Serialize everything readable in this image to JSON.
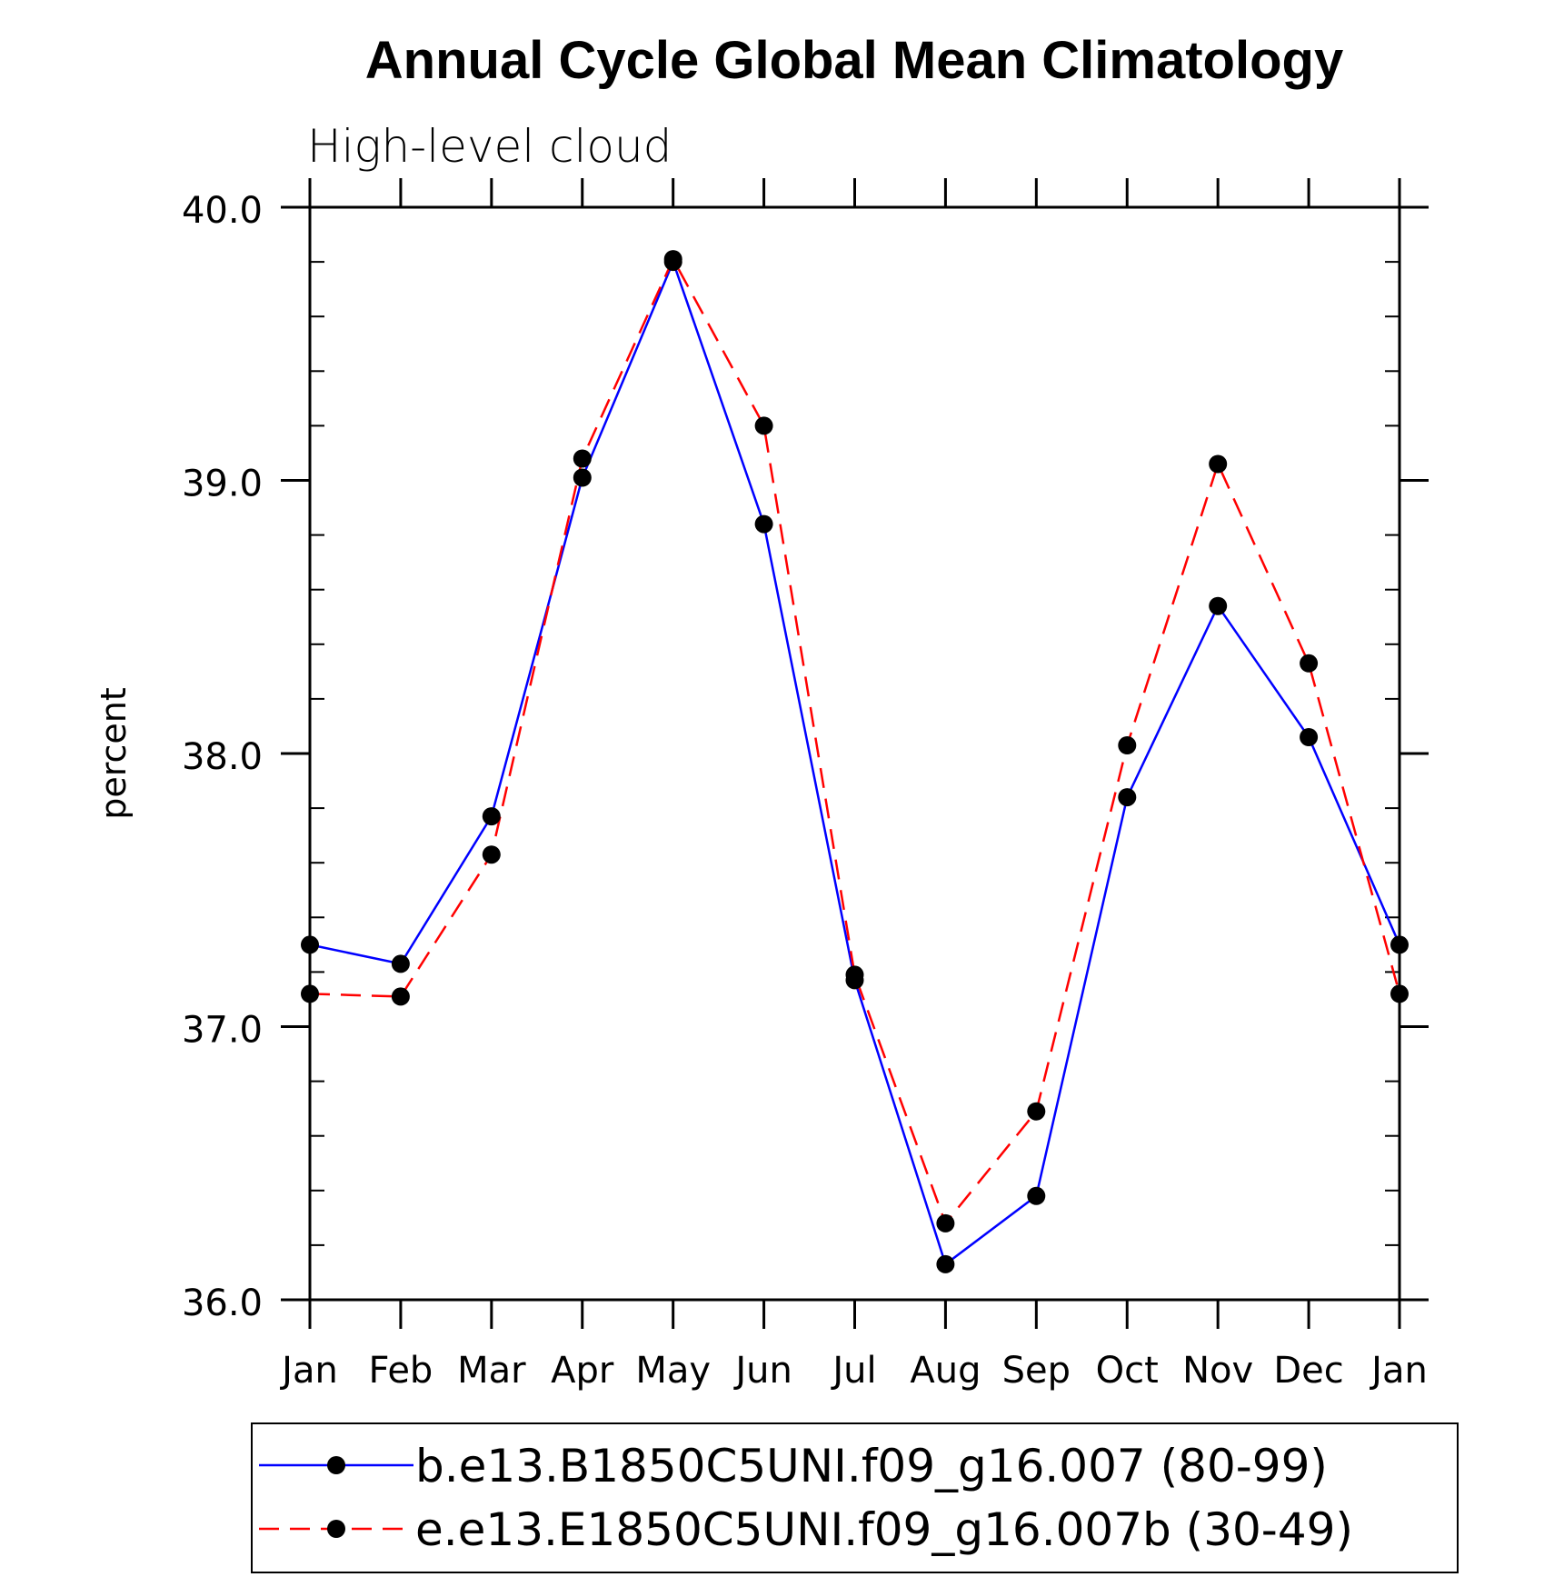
{
  "chart_data": {
    "type": "line",
    "title": "Annual Cycle Global Mean Climatology",
    "subtitle": "High-level cloud",
    "xlabel": "",
    "ylabel": "percent",
    "categories": [
      "Jan",
      "Feb",
      "Mar",
      "Apr",
      "May",
      "Jun",
      "Jul",
      "Aug",
      "Sep",
      "Oct",
      "Nov",
      "Dec",
      "Jan"
    ],
    "ylim": [
      36.0,
      40.0
    ],
    "yticks": [
      "36.0",
      "37.0",
      "38.0",
      "39.0",
      "40.0"
    ],
    "grid": false,
    "legend_position": "bottom",
    "series": [
      {
        "name": "b.e13.B1850C5UNI.f09_g16.007 (80-99)",
        "color": "#0000ff",
        "line_style": "solid",
        "marker": "filled-circle",
        "values": [
          37.3,
          37.23,
          37.77,
          39.01,
          39.8,
          38.84,
          37.17,
          36.13,
          36.38,
          37.84,
          38.54,
          38.06,
          37.3
        ]
      },
      {
        "name": "e.e13.E1850C5UNI.f09_g16.007b (30-49)",
        "color": "#ff0000",
        "line_style": "dashed",
        "marker": "filled-circle",
        "values": [
          37.12,
          37.11,
          37.63,
          39.08,
          39.81,
          39.2,
          37.19,
          36.28,
          36.69,
          38.03,
          39.06,
          38.33,
          37.12
        ]
      }
    ]
  }
}
